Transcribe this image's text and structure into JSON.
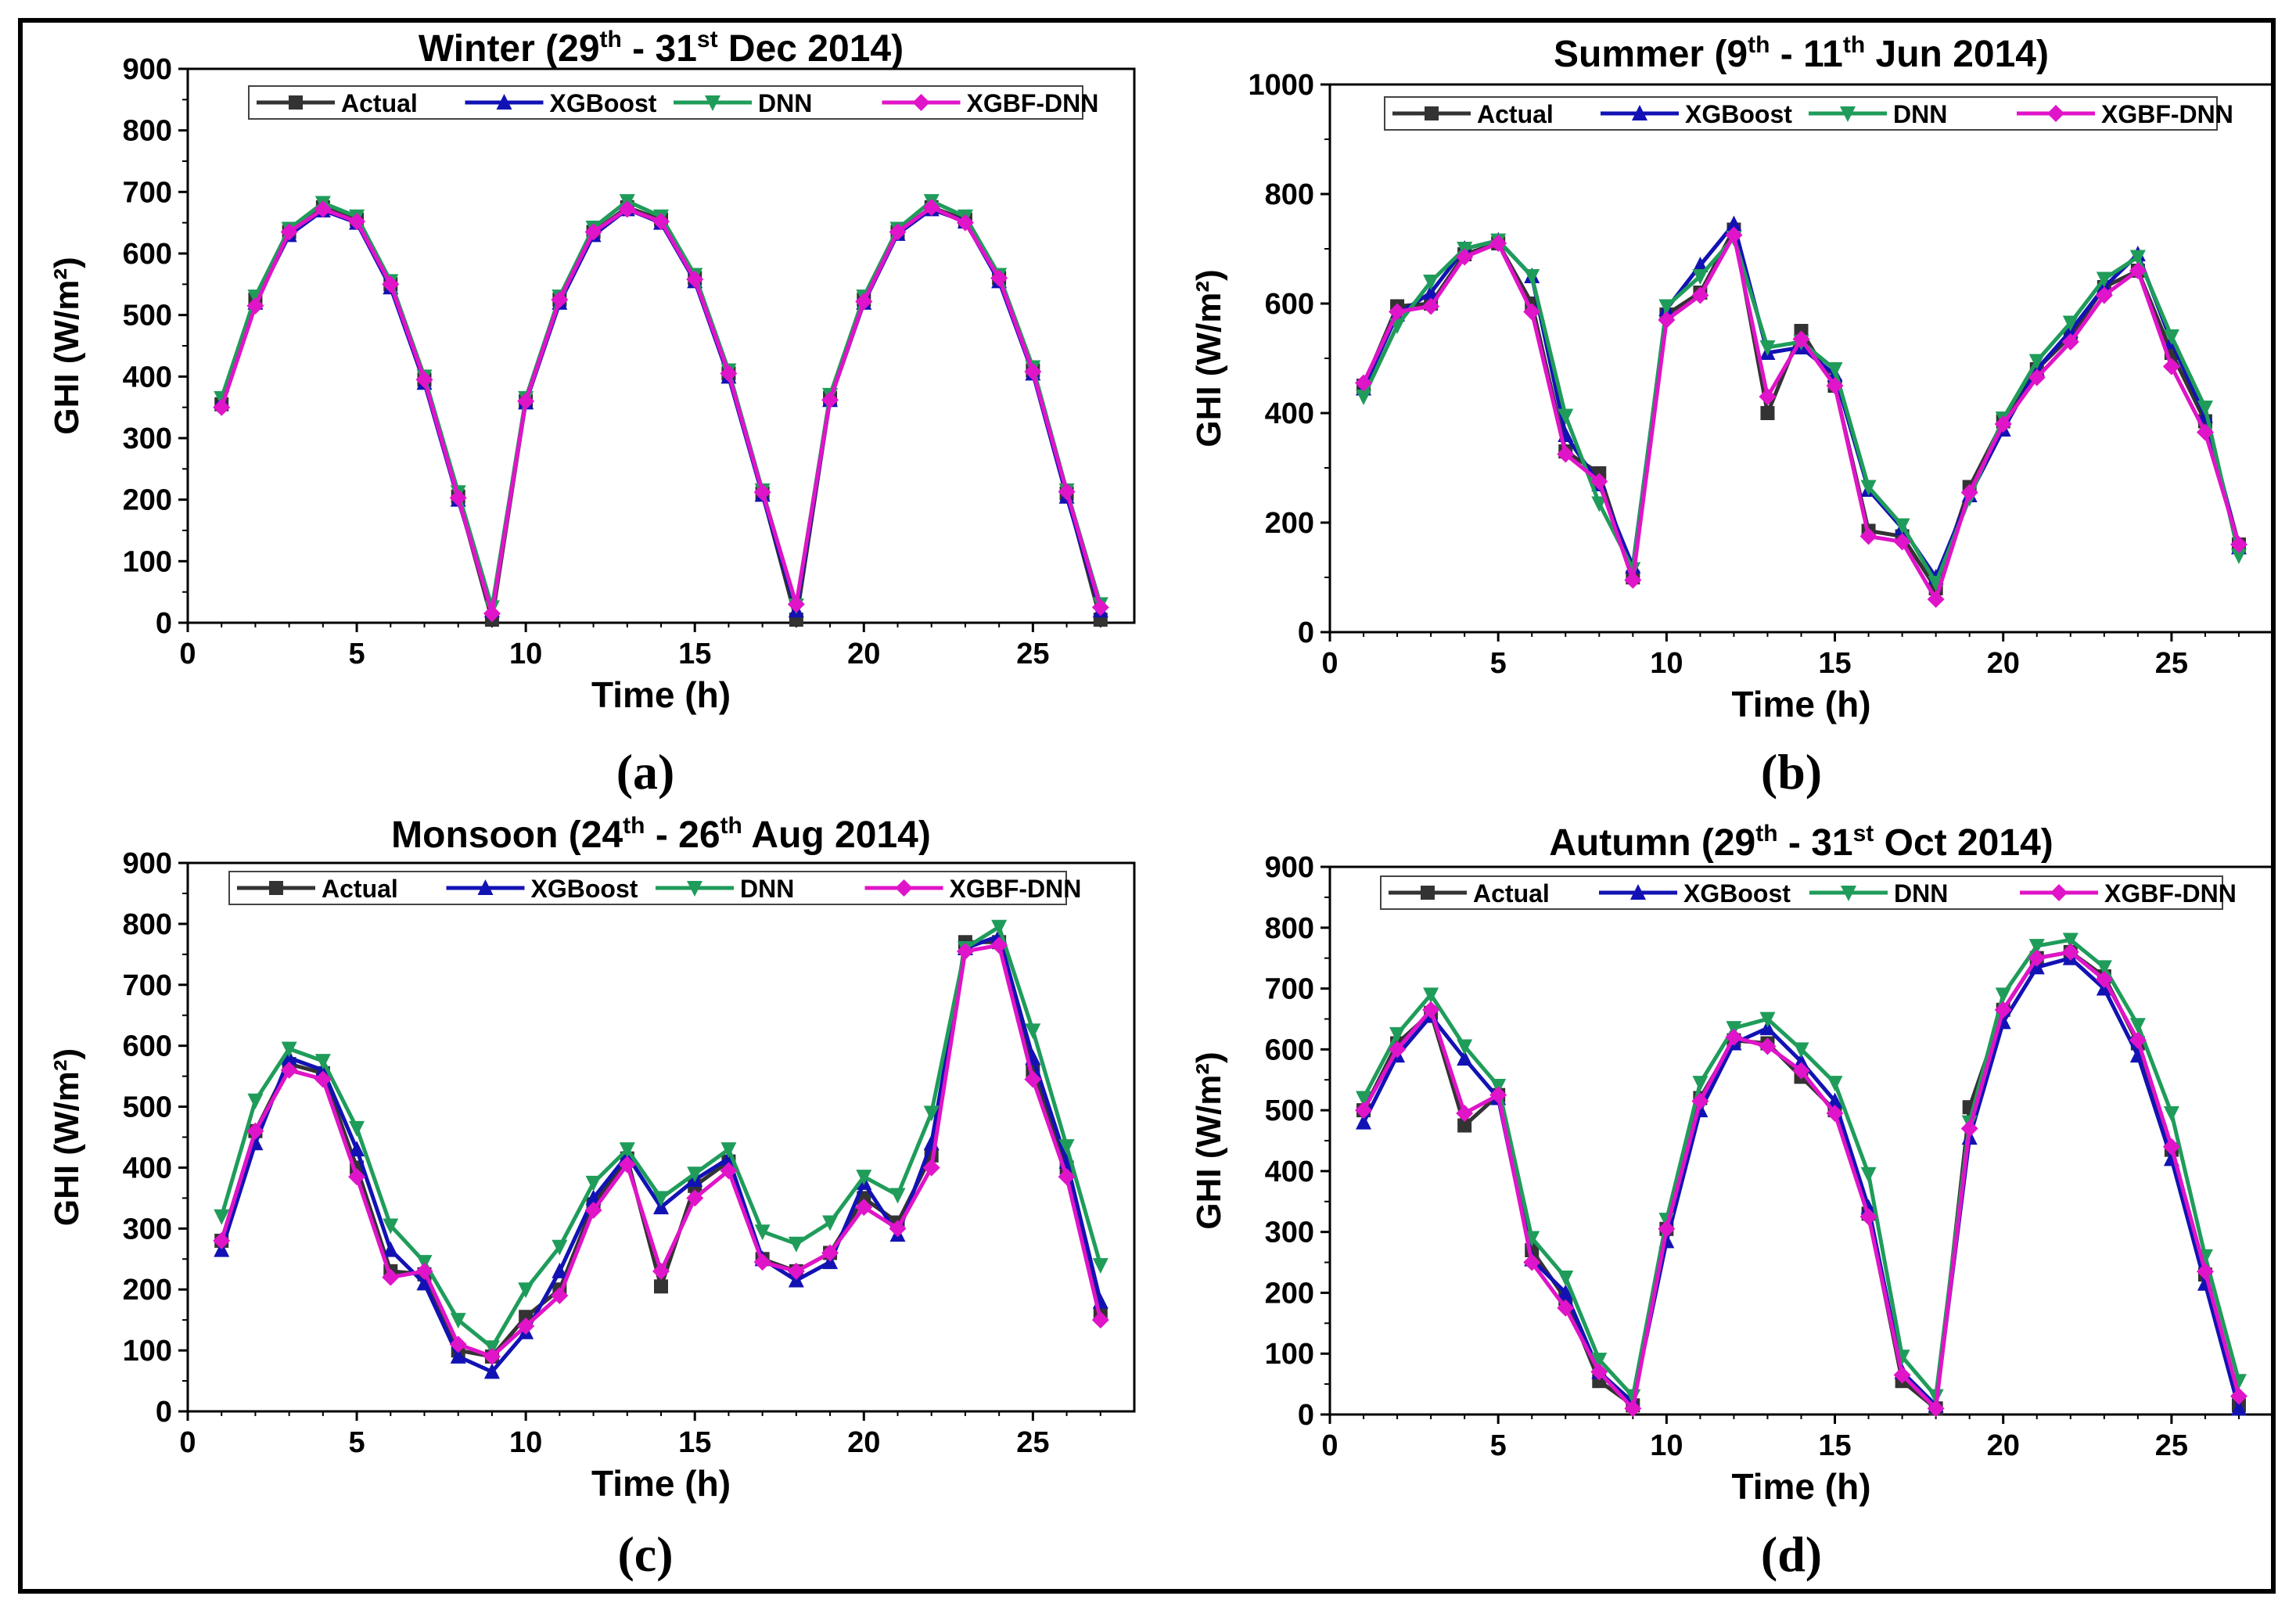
{
  "figure": {
    "colors": {
      "Actual": "#333333",
      "XGBoost": "#1212b4",
      "DNN": "#1f9c5a",
      "XGBF-DNN": "#e014c8"
    }
  },
  "chart_data": [
    {
      "type": "line",
      "panel_label": "(a)",
      "title": {
        "prefix": "Winter (29",
        "sup1": "th",
        "mid": " - 31",
        "sup2": "st",
        "suffix": " Dec 2014)"
      },
      "xlabel": "Time (h)",
      "ylabel": "GHI (W/m²)",
      "xlim": [
        0,
        28
      ],
      "ylim": [
        0,
        900
      ],
      "xticks": [
        0,
        5,
        10,
        15,
        20,
        25
      ],
      "yticks": [
        0,
        100,
        200,
        300,
        400,
        500,
        600,
        700,
        800,
        900
      ],
      "legend": {
        "position": "top",
        "entries": [
          "Actual",
          "XGBoost",
          "DNN",
          "XGBF-DNN"
        ]
      },
      "x": [
        1,
        2,
        3,
        4,
        5,
        6,
        7,
        8,
        9,
        10,
        11,
        12,
        13,
        14,
        15,
        16,
        17,
        18,
        19,
        20,
        21,
        22,
        23,
        24,
        25,
        26,
        27
      ],
      "series": [
        {
          "name": "Actual",
          "values": [
            355,
            525,
            635,
            675,
            655,
            550,
            395,
            205,
            5,
            360,
            525,
            635,
            675,
            655,
            560,
            405,
            210,
            5,
            365,
            525,
            635,
            675,
            655,
            560,
            410,
            210,
            5
          ]
        },
        {
          "name": "XGBoost",
          "values": [
            360,
            520,
            630,
            670,
            650,
            545,
            390,
            200,
            20,
            358,
            520,
            630,
            672,
            650,
            555,
            400,
            208,
            20,
            362,
            520,
            632,
            672,
            652,
            555,
            405,
            205,
            20
          ]
        },
        {
          "name": "DNN",
          "values": [
            365,
            530,
            640,
            682,
            660,
            555,
            400,
            212,
            25,
            365,
            530,
            642,
            685,
            660,
            565,
            410,
            215,
            28,
            370,
            530,
            640,
            685,
            660,
            565,
            415,
            215,
            30
          ]
        },
        {
          "name": "XGBF-DNN",
          "values": [
            350,
            515,
            635,
            672,
            652,
            550,
            395,
            203,
            15,
            360,
            525,
            635,
            672,
            652,
            558,
            405,
            212,
            30,
            362,
            522,
            635,
            675,
            650,
            560,
            408,
            213,
            25
          ]
        }
      ]
    },
    {
      "type": "line",
      "panel_label": "(b)",
      "title": {
        "prefix": "Summer (9",
        "sup1": "th",
        "mid": " - 11",
        "sup2": "th",
        "suffix": " Jun 2014)"
      },
      "xlabel": "Time (h)",
      "ylabel": "GHI (W/m²)",
      "xlim": [
        0,
        28
      ],
      "ylim": [
        0,
        1000
      ],
      "xticks": [
        0,
        5,
        10,
        15,
        20,
        25
      ],
      "yticks": [
        0,
        200,
        400,
        600,
        800,
        1000
      ],
      "legend": {
        "position": "top",
        "entries": [
          "Actual",
          "XGBoost",
          "DNN",
          "XGBF-DNN"
        ]
      },
      "x": [
        1,
        2,
        3,
        4,
        5,
        6,
        7,
        8,
        9,
        10,
        11,
        12,
        13,
        14,
        15,
        16,
        17,
        18,
        19,
        20,
        21,
        22,
        23,
        24,
        25,
        26,
        27
      ],
      "series": [
        {
          "name": "Actual",
          "values": [
            450,
            595,
            600,
            690,
            710,
            600,
            330,
            290,
            100,
            580,
            620,
            735,
            400,
            550,
            450,
            185,
            175,
            80,
            265,
            385,
            480,
            540,
            630,
            660,
            510,
            385,
            160
          ]
        },
        {
          "name": "XGBoost",
          "values": [
            445,
            580,
            620,
            700,
            715,
            650,
            360,
            270,
            120,
            590,
            670,
            745,
            510,
            520,
            470,
            260,
            190,
            100,
            250,
            370,
            480,
            550,
            630,
            690,
            530,
            395,
            155
          ]
        },
        {
          "name": "DNN",
          "values": [
            430,
            560,
            640,
            700,
            715,
            650,
            395,
            235,
            115,
            595,
            650,
            720,
            520,
            530,
            480,
            265,
            195,
            90,
            245,
            390,
            495,
            565,
            645,
            685,
            540,
            410,
            140
          ]
        },
        {
          "name": "XGBF-DNN",
          "values": [
            455,
            585,
            595,
            685,
            710,
            585,
            325,
            275,
            95,
            570,
            615,
            725,
            430,
            535,
            450,
            175,
            165,
            60,
            255,
            380,
            465,
            530,
            615,
            660,
            485,
            365,
            160
          ]
        }
      ]
    },
    {
      "type": "line",
      "panel_label": "(c)",
      "title": {
        "prefix": "Monsoon (24",
        "sup1": "th",
        "mid": " - 26",
        "sup2": "th",
        "suffix": " Aug 2014)"
      },
      "xlabel": "Time (h)",
      "ylabel": "GHI (W/m²)",
      "xlim": [
        0,
        28
      ],
      "ylim": [
        0,
        900
      ],
      "xticks": [
        0,
        5,
        10,
        15,
        20,
        25
      ],
      "yticks": [
        0,
        100,
        200,
        300,
        400,
        500,
        600,
        700,
        800,
        900
      ],
      "legend": {
        "position": "top",
        "entries": [
          "Actual",
          "XGBoost",
          "DNN",
          "XGBF-DNN"
        ]
      },
      "x": [
        1,
        2,
        3,
        4,
        5,
        6,
        7,
        8,
        9,
        10,
        11,
        12,
        13,
        14,
        15,
        16,
        17,
        18,
        19,
        20,
        21,
        22,
        23,
        24,
        25,
        26,
        27
      ],
      "series": [
        {
          "name": "Actual",
          "values": [
            280,
            460,
            570,
            555,
            400,
            230,
            225,
            100,
            90,
            155,
            200,
            340,
            415,
            205,
            370,
            410,
            250,
            230,
            260,
            350,
            310,
            420,
            770,
            770,
            560,
            400,
            160
          ]
        },
        {
          "name": "XGBoost",
          "values": [
            265,
            440,
            580,
            560,
            430,
            265,
            210,
            90,
            65,
            130,
            230,
            350,
            420,
            335,
            380,
            415,
            250,
            215,
            245,
            375,
            290,
            440,
            760,
            780,
            580,
            410,
            180
          ]
        },
        {
          "name": "DNN",
          "values": [
            320,
            510,
            595,
            575,
            465,
            305,
            245,
            150,
            105,
            200,
            270,
            375,
            430,
            350,
            390,
            430,
            295,
            275,
            310,
            385,
            355,
            490,
            760,
            795,
            625,
            435,
            240
          ]
        },
        {
          "name": "XGBF-DNN",
          "values": [
            280,
            460,
            560,
            545,
            385,
            220,
            230,
            110,
            90,
            140,
            190,
            330,
            405,
            230,
            350,
            395,
            245,
            230,
            260,
            335,
            300,
            400,
            755,
            765,
            545,
            385,
            150
          ]
        }
      ]
    },
    {
      "type": "line",
      "panel_label": "(d)",
      "title": {
        "prefix": "Autumn (29",
        "sup1": "th",
        "mid": " - 31",
        "sup2": "st",
        "suffix": " Oct 2014)"
      },
      "xlabel": "Time (h)",
      "ylabel": "GHI (W/m²)",
      "xlim": [
        0,
        28
      ],
      "ylim": [
        0,
        900
      ],
      "xticks": [
        0,
        5,
        10,
        15,
        20,
        25
      ],
      "yticks": [
        0,
        100,
        200,
        300,
        400,
        500,
        600,
        700,
        800,
        900
      ],
      "legend": {
        "position": "top",
        "entries": [
          "Actual",
          "XGBoost",
          "DNN",
          "XGBF-DNN"
        ]
      },
      "x": [
        1,
        2,
        3,
        4,
        5,
        6,
        7,
        8,
        9,
        10,
        11,
        12,
        13,
        14,
        15,
        16,
        17,
        18,
        19,
        20,
        21,
        22,
        23,
        24,
        25,
        26,
        27
      ],
      "series": [
        {
          "name": "Actual",
          "values": [
            500,
            610,
            660,
            475,
            525,
            270,
            190,
            55,
            15,
            305,
            520,
            615,
            610,
            555,
            500,
            330,
            55,
            10,
            505,
            665,
            750,
            760,
            720,
            610,
            435,
            230,
            15
          ]
        },
        {
          "name": "XGBoost",
          "values": [
            480,
            590,
            655,
            585,
            520,
            255,
            200,
            70,
            20,
            285,
            500,
            610,
            635,
            580,
            515,
            340,
            70,
            15,
            455,
            645,
            735,
            750,
            700,
            590,
            420,
            215,
            10
          ]
        },
        {
          "name": "DNN",
          "values": [
            520,
            625,
            690,
            605,
            540,
            290,
            225,
            90,
            30,
            320,
            545,
            635,
            650,
            600,
            545,
            395,
            95,
            30,
            480,
            690,
            770,
            780,
            735,
            640,
            495,
            260,
            55
          ]
        },
        {
          "name": "XGBF-DNN",
          "values": [
            500,
            600,
            665,
            495,
            525,
            250,
            175,
            70,
            10,
            305,
            515,
            620,
            605,
            565,
            495,
            325,
            65,
            10,
            470,
            665,
            750,
            760,
            715,
            615,
            440,
            235,
            30
          ]
        }
      ]
    }
  ]
}
